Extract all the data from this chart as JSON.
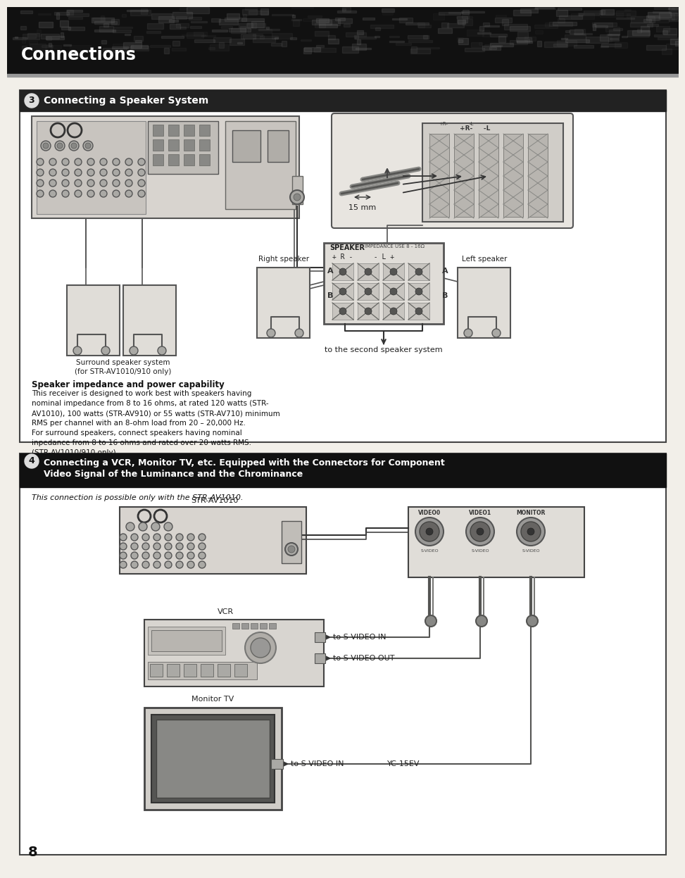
{
  "page_bg": "#f2efe9",
  "header_bg": "#111111",
  "header_text": "Connections",
  "header_text_color": "#ffffff",
  "section1_header_bg": "#222222",
  "section1_header_text": "Connecting a Speaker System",
  "section1_num": "3",
  "section1_header_text_color": "#ffffff",
  "section2_header_bg": "#111111",
  "section2_header_line1": "Connecting a VCR, Monitor TV, etc. Equipped with the Connectors for Component",
  "section2_header_line2": "Video Signal of the Luminance and the Chrominance",
  "section2_num": "4",
  "section2_header_text_color": "#ffffff",
  "section1_body_text": [
    "Speaker impedance and power capability",
    "This receiver is designed to work best with speakers having",
    "nominal impedance from 8 to 16 ohms, at rated 120 watts (STR-",
    "AV1010), 100 watts (STR-AV910) or 55 watts (STR-AV710) minimum",
    "RMS per channel with an 8-ohm load from 20 – 20,000 Hz.",
    "For surround speakers, connect speakers having nominal",
    "inpedance from 8 to 16 ohms and rated over 20 watts RMS.",
    "(STR-AV1010/910 only)"
  ],
  "section2_body_text": "This connection is possible only with the STR-AV1010.",
  "surround_label1": "Surround speaker system",
  "surround_label2": "(for STR-AV1010/910 only)",
  "right_speaker_label": "Right speaker",
  "left_speaker_label": "Left speaker",
  "second_speaker_label": "to the second speaker system",
  "str_av1010_label": "STR-AV1010",
  "vcr_label": "VCR",
  "monitor_tv_label": "Monitor TV",
  "to_s_video_in_label": "to S VIDEO IN",
  "to_s_video_out_label": "to S VIDEO OUT",
  "to_s_video_in2_label": "to S VIDEO IN",
  "yc_15ev_label": "YC-15EV",
  "mm15_label": "15 mm",
  "page_number": "8",
  "speaker_label": "SPEAKER",
  "impedance_label": "IMPEDANCE USE 8 - 16Ω"
}
